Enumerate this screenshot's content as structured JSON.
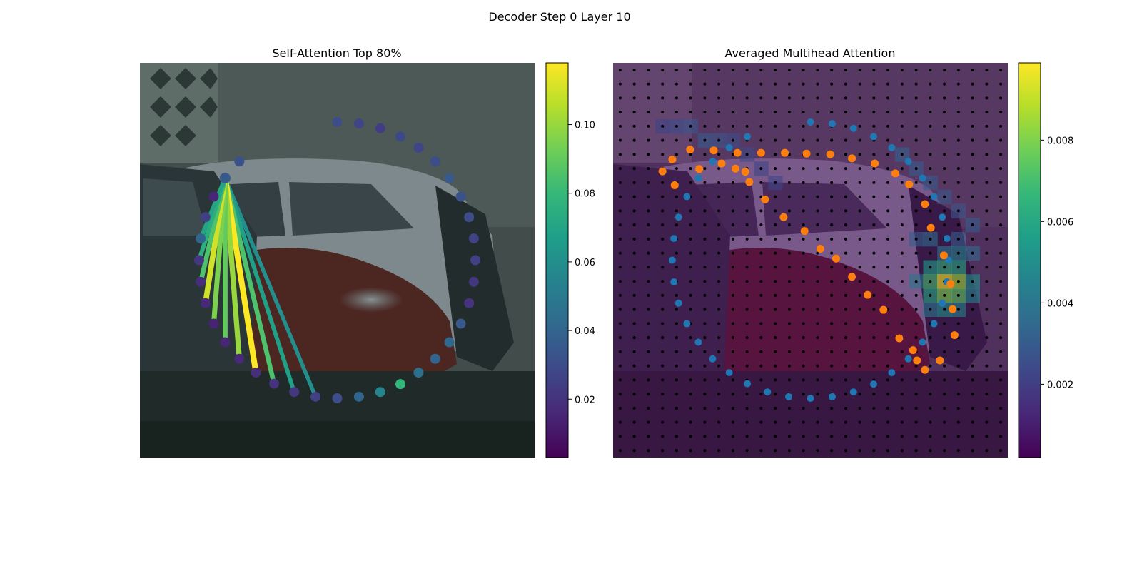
{
  "figure": {
    "title": "Decoder Step 0 Layer 10"
  },
  "colors": {
    "viridis": [
      "#440154",
      "#482878",
      "#3e4989",
      "#31688e",
      "#26828e",
      "#1f9e89",
      "#35b779",
      "#6ece58",
      "#b5de2b",
      "#fde725"
    ],
    "blue_points": "#1f77b4",
    "orange_points": "#ff7f0e",
    "grid_dots": "#000000"
  },
  "chart_data": [
    {
      "type": "scatter",
      "title": "Self-Attention Top 80%",
      "background": "camera image of parked cars",
      "colorbar": {
        "min": 0.003,
        "max": 0.118,
        "ticks": [
          0.02,
          0.04,
          0.06,
          0.08,
          0.1
        ],
        "tick_labels": [
          "0.02",
          "0.04",
          "0.06",
          "0.08",
          "0.10"
        ]
      },
      "query_index": 34,
      "points": [
        {
          "x": 0.5,
          "y": 0.15,
          "v": 0.03
        },
        {
          "x": 0.555,
          "y": 0.154,
          "v": 0.027
        },
        {
          "x": 0.609,
          "y": 0.166,
          "v": 0.024
        },
        {
          "x": 0.66,
          "y": 0.187,
          "v": 0.028
        },
        {
          "x": 0.706,
          "y": 0.215,
          "v": 0.027
        },
        {
          "x": 0.748,
          "y": 0.25,
          "v": 0.03
        },
        {
          "x": 0.784,
          "y": 0.292,
          "v": 0.035
        },
        {
          "x": 0.813,
          "y": 0.339,
          "v": 0.032
        },
        {
          "x": 0.834,
          "y": 0.391,
          "v": 0.03
        },
        {
          "x": 0.846,
          "y": 0.445,
          "v": 0.026
        },
        {
          "x": 0.85,
          "y": 0.5,
          "v": 0.025
        },
        {
          "x": 0.846,
          "y": 0.555,
          "v": 0.022
        },
        {
          "x": 0.834,
          "y": 0.609,
          "v": 0.02
        },
        {
          "x": 0.813,
          "y": 0.661,
          "v": 0.035
        },
        {
          "x": 0.784,
          "y": 0.708,
          "v": 0.042
        },
        {
          "x": 0.748,
          "y": 0.75,
          "v": 0.04
        },
        {
          "x": 0.706,
          "y": 0.785,
          "v": 0.045
        },
        {
          "x": 0.66,
          "y": 0.814,
          "v": 0.078
        },
        {
          "x": 0.609,
          "y": 0.834,
          "v": 0.055
        },
        {
          "x": 0.555,
          "y": 0.846,
          "v": 0.04
        },
        {
          "x": 0.5,
          "y": 0.85,
          "v": 0.03
        },
        {
          "x": 0.445,
          "y": 0.846,
          "v": 0.025
        },
        {
          "x": 0.391,
          "y": 0.834,
          "v": 0.022
        },
        {
          "x": 0.34,
          "y": 0.813,
          "v": 0.02
        },
        {
          "x": 0.294,
          "y": 0.785,
          "v": 0.018
        },
        {
          "x": 0.252,
          "y": 0.75,
          "v": 0.016
        },
        {
          "x": 0.216,
          "y": 0.708,
          "v": 0.015
        },
        {
          "x": 0.187,
          "y": 0.661,
          "v": 0.014
        },
        {
          "x": 0.166,
          "y": 0.609,
          "v": 0.016
        },
        {
          "x": 0.154,
          "y": 0.555,
          "v": 0.018
        },
        {
          "x": 0.15,
          "y": 0.5,
          "v": 0.022
        },
        {
          "x": 0.154,
          "y": 0.445,
          "v": 0.04
        },
        {
          "x": 0.166,
          "y": 0.391,
          "v": 0.025
        },
        {
          "x": 0.187,
          "y": 0.339,
          "v": 0.015
        },
        {
          "x": 0.216,
          "y": 0.292,
          "v": 0.035
        },
        {
          "x": 0.252,
          "y": 0.25,
          "v": 0.032
        }
      ],
      "edges": [
        {
          "to": 21,
          "v": 0.06
        },
        {
          "to": 22,
          "v": 0.068
        },
        {
          "to": 23,
          "v": 0.085
        },
        {
          "to": 24,
          "v": 0.118
        },
        {
          "to": 25,
          "v": 0.1
        },
        {
          "to": 26,
          "v": 0.09
        },
        {
          "to": 27,
          "v": 0.095
        },
        {
          "to": 28,
          "v": 0.11
        },
        {
          "to": 29,
          "v": 0.085
        },
        {
          "to": 30,
          "v": 0.075
        },
        {
          "to": 31,
          "v": 0.07
        }
      ]
    },
    {
      "type": "heatmap",
      "title": "Averaged Multihead Attention",
      "background": "camera image of parked cars with attention overlay",
      "colorbar": {
        "min": 0.0002,
        "max": 0.0099,
        "ticks": [
          0.002,
          0.004,
          0.006,
          0.008
        ],
        "tick_labels": [
          "0.002",
          "0.004",
          "0.006",
          "0.008"
        ]
      },
      "grid_size": 28,
      "blue_points": [
        {
          "x": 0.5,
          "y": 0.15
        },
        {
          "x": 0.555,
          "y": 0.154
        },
        {
          "x": 0.609,
          "y": 0.166
        },
        {
          "x": 0.66,
          "y": 0.187
        },
        {
          "x": 0.706,
          "y": 0.215
        },
        {
          "x": 0.748,
          "y": 0.25
        },
        {
          "x": 0.784,
          "y": 0.292
        },
        {
          "x": 0.813,
          "y": 0.339
        },
        {
          "x": 0.834,
          "y": 0.391
        },
        {
          "x": 0.846,
          "y": 0.445
        },
        {
          "x": 0.85,
          "y": 0.5
        },
        {
          "x": 0.846,
          "y": 0.555
        },
        {
          "x": 0.834,
          "y": 0.609
        },
        {
          "x": 0.813,
          "y": 0.661
        },
        {
          "x": 0.784,
          "y": 0.708
        },
        {
          "x": 0.748,
          "y": 0.75
        },
        {
          "x": 0.706,
          "y": 0.785
        },
        {
          "x": 0.66,
          "y": 0.814
        },
        {
          "x": 0.609,
          "y": 0.834
        },
        {
          "x": 0.555,
          "y": 0.846
        },
        {
          "x": 0.5,
          "y": 0.85
        },
        {
          "x": 0.445,
          "y": 0.846
        },
        {
          "x": 0.391,
          "y": 0.834
        },
        {
          "x": 0.34,
          "y": 0.813
        },
        {
          "x": 0.294,
          "y": 0.785
        },
        {
          "x": 0.252,
          "y": 0.75
        },
        {
          "x": 0.216,
          "y": 0.708
        },
        {
          "x": 0.187,
          "y": 0.661
        },
        {
          "x": 0.166,
          "y": 0.609
        },
        {
          "x": 0.154,
          "y": 0.555
        },
        {
          "x": 0.15,
          "y": 0.5
        },
        {
          "x": 0.154,
          "y": 0.445
        },
        {
          "x": 0.166,
          "y": 0.391
        },
        {
          "x": 0.187,
          "y": 0.339
        },
        {
          "x": 0.216,
          "y": 0.292
        },
        {
          "x": 0.252,
          "y": 0.25
        },
        {
          "x": 0.294,
          "y": 0.215
        },
        {
          "x": 0.34,
          "y": 0.187
        }
      ],
      "orange_points": [
        {
          "x": 0.125,
          "y": 0.275
        },
        {
          "x": 0.15,
          "y": 0.245
        },
        {
          "x": 0.195,
          "y": 0.22
        },
        {
          "x": 0.255,
          "y": 0.222
        },
        {
          "x": 0.315,
          "y": 0.228
        },
        {
          "x": 0.375,
          "y": 0.228
        },
        {
          "x": 0.435,
          "y": 0.228
        },
        {
          "x": 0.49,
          "y": 0.23
        },
        {
          "x": 0.55,
          "y": 0.232
        },
        {
          "x": 0.605,
          "y": 0.242
        },
        {
          "x": 0.663,
          "y": 0.255
        },
        {
          "x": 0.715,
          "y": 0.28
        },
        {
          "x": 0.75,
          "y": 0.308
        },
        {
          "x": 0.79,
          "y": 0.358
        },
        {
          "x": 0.805,
          "y": 0.418
        },
        {
          "x": 0.838,
          "y": 0.488
        },
        {
          "x": 0.855,
          "y": 0.56
        },
        {
          "x": 0.86,
          "y": 0.624
        },
        {
          "x": 0.865,
          "y": 0.69
        },
        {
          "x": 0.828,
          "y": 0.754
        },
        {
          "x": 0.79,
          "y": 0.778
        },
        {
          "x": 0.77,
          "y": 0.754
        },
        {
          "x": 0.76,
          "y": 0.728
        },
        {
          "x": 0.725,
          "y": 0.698
        },
        {
          "x": 0.685,
          "y": 0.626
        },
        {
          "x": 0.645,
          "y": 0.588
        },
        {
          "x": 0.605,
          "y": 0.542
        },
        {
          "x": 0.565,
          "y": 0.496
        },
        {
          "x": 0.525,
          "y": 0.471
        },
        {
          "x": 0.485,
          "y": 0.426
        },
        {
          "x": 0.432,
          "y": 0.391
        },
        {
          "x": 0.385,
          "y": 0.346
        },
        {
          "x": 0.345,
          "y": 0.302
        },
        {
          "x": 0.335,
          "y": 0.276
        },
        {
          "x": 0.31,
          "y": 0.268
        },
        {
          "x": 0.275,
          "y": 0.255
        },
        {
          "x": 0.218,
          "y": 0.269
        },
        {
          "x": 0.156,
          "y": 0.31
        }
      ],
      "hotspots": [
        {
          "col": 22,
          "row": 14,
          "v": 0.0055
        },
        {
          "col": 23,
          "row": 14,
          "v": 0.0065
        },
        {
          "col": 24,
          "row": 14,
          "v": 0.006
        },
        {
          "col": 21,
          "row": 15,
          "v": 0.004
        },
        {
          "col": 22,
          "row": 15,
          "v": 0.007
        },
        {
          "col": 23,
          "row": 15,
          "v": 0.0099
        },
        {
          "col": 24,
          "row": 15,
          "v": 0.0085
        },
        {
          "col": 25,
          "row": 15,
          "v": 0.005
        },
        {
          "col": 22,
          "row": 16,
          "v": 0.006
        },
        {
          "col": 23,
          "row": 16,
          "v": 0.008
        },
        {
          "col": 24,
          "row": 16,
          "v": 0.0075
        },
        {
          "col": 25,
          "row": 16,
          "v": 0.0045
        },
        {
          "col": 22,
          "row": 17,
          "v": 0.004
        },
        {
          "col": 23,
          "row": 17,
          "v": 0.005
        },
        {
          "col": 24,
          "row": 17,
          "v": 0.0045
        },
        {
          "col": 21,
          "row": 12,
          "v": 0.003
        },
        {
          "col": 22,
          "row": 12,
          "v": 0.0035
        },
        {
          "col": 23,
          "row": 13,
          "v": 0.004
        },
        {
          "col": 24,
          "row": 12,
          "v": 0.003
        },
        {
          "col": 25,
          "row": 13,
          "v": 0.0035
        },
        {
          "col": 24,
          "row": 13,
          "v": 0.0045
        },
        {
          "col": 3,
          "row": 4,
          "v": 0.0022
        },
        {
          "col": 4,
          "row": 4,
          "v": 0.0025
        },
        {
          "col": 5,
          "row": 4,
          "v": 0.0028
        },
        {
          "col": 6,
          "row": 5,
          "v": 0.003
        },
        {
          "col": 7,
          "row": 5,
          "v": 0.0028
        },
        {
          "col": 8,
          "row": 5,
          "v": 0.0025
        },
        {
          "col": 9,
          "row": 6,
          "v": 0.0024
        },
        {
          "col": 10,
          "row": 7,
          "v": 0.0022
        },
        {
          "col": 11,
          "row": 8,
          "v": 0.0022
        },
        {
          "col": 20,
          "row": 6,
          "v": 0.0032
        },
        {
          "col": 21,
          "row": 7,
          "v": 0.003
        },
        {
          "col": 22,
          "row": 8,
          "v": 0.003
        },
        {
          "col": 23,
          "row": 9,
          "v": 0.0028
        },
        {
          "col": 24,
          "row": 10,
          "v": 0.0028
        },
        {
          "col": 25,
          "row": 11,
          "v": 0.003
        }
      ]
    }
  ]
}
